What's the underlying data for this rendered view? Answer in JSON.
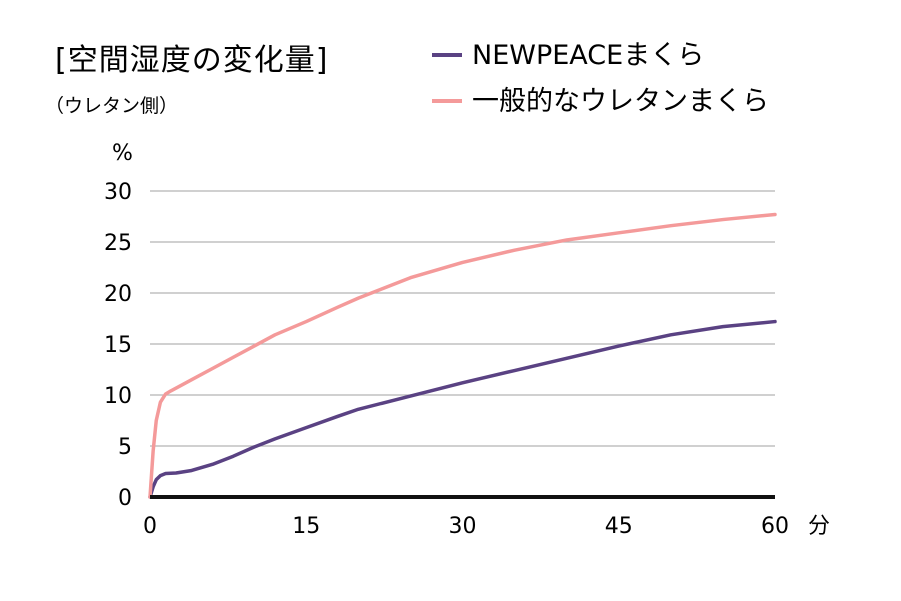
{
  "chart_data": {
    "type": "line",
    "title": "[空間湿度の変化量]",
    "subtitle": "（ウレタン側）",
    "ylabel": "%",
    "xlabel": "分",
    "xlim": [
      0,
      60
    ],
    "ylim": [
      0,
      30
    ],
    "xticks": [
      0,
      15,
      30,
      45,
      60
    ],
    "yticks": [
      0,
      5,
      10,
      15,
      20,
      25,
      30
    ],
    "grid": true,
    "legend_position": "top-right",
    "series": [
      {
        "name": "NEWPEACEまくら",
        "color": "#5a4283",
        "points": [
          [
            0,
            0
          ],
          [
            0.3,
            1.0
          ],
          [
            0.6,
            1.7
          ],
          [
            1.0,
            2.1
          ],
          [
            1.5,
            2.3
          ],
          [
            2.5,
            2.35
          ],
          [
            4,
            2.6
          ],
          [
            6,
            3.2
          ],
          [
            8,
            4.0
          ],
          [
            10,
            4.9
          ],
          [
            12,
            5.7
          ],
          [
            15,
            6.8
          ],
          [
            18,
            7.9
          ],
          [
            20,
            8.6
          ],
          [
            25,
            9.9
          ],
          [
            30,
            11.2
          ],
          [
            35,
            12.4
          ],
          [
            40,
            13.6
          ],
          [
            45,
            14.8
          ],
          [
            50,
            15.9
          ],
          [
            55,
            16.7
          ],
          [
            60,
            17.2
          ]
        ]
      },
      {
        "name": "一般的なウレタンまくら",
        "color": "#f49a9a",
        "points": [
          [
            0,
            0
          ],
          [
            0.3,
            4.5
          ],
          [
            0.6,
            7.5
          ],
          [
            1.0,
            9.3
          ],
          [
            1.5,
            10.1
          ],
          [
            2,
            10.4
          ],
          [
            4,
            11.5
          ],
          [
            6,
            12.6
          ],
          [
            8,
            13.7
          ],
          [
            10,
            14.8
          ],
          [
            12,
            15.9
          ],
          [
            15,
            17.2
          ],
          [
            18,
            18.6
          ],
          [
            20,
            19.5
          ],
          [
            25,
            21.5
          ],
          [
            30,
            23.0
          ],
          [
            35,
            24.2
          ],
          [
            40,
            25.2
          ],
          [
            45,
            25.9
          ],
          [
            50,
            26.6
          ],
          [
            55,
            27.2
          ],
          [
            60,
            27.7
          ]
        ]
      }
    ]
  }
}
